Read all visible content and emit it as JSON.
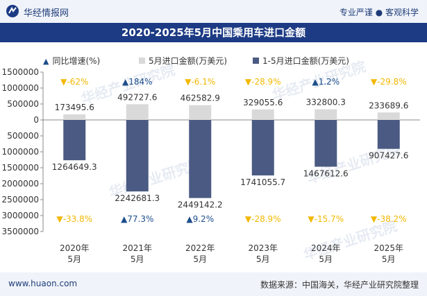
{
  "header": {
    "site_name": "华经情报网",
    "slogan_left": "专业严谨",
    "slogan_right": "客观科学"
  },
  "footer": {
    "url": "www.huaon.com",
    "source": "数据来源：中国海关，华经产业研究院整理"
  },
  "watermark": "华经产业研究院",
  "colors": {
    "bar_monthly": "#d9d9d9",
    "bar_cumulative": "#4a5a82",
    "growth_up": "#1d4e8a",
    "growth_down": "#f2b800",
    "title_bg": "#1d3b84"
  },
  "chart_data": {
    "type": "bar",
    "title": "2020-2025年5月中国乘用车进口金额",
    "categories": [
      "2020年\n5月",
      "2021年\n5月",
      "2022年\n5月",
      "2023年\n5月",
      "2024年\n5月",
      "2025年\n5月"
    ],
    "series": [
      {
        "name": "5月进口金额(万美元)",
        "values": [
          173495.6,
          492727.6,
          462582.9,
          329055.6,
          332800.3,
          233689.6
        ],
        "value_labels": [
          "173495.6",
          "492727.6",
          "462582.9",
          "329055.6",
          "332800.3",
          "233689.6"
        ],
        "growth_labels": [
          "-62%",
          "184%",
          "-6.1%",
          "-28.9%",
          "1.2%",
          "-29.8%"
        ],
        "growth_directions": [
          "down",
          "up",
          "down",
          "down",
          "up",
          "down"
        ]
      },
      {
        "name": "1-5月进口金额(万美元)",
        "values": [
          -1264649.3,
          -2242681.3,
          -2449142.2,
          -1741055.7,
          -1467612.6,
          -907427.6
        ],
        "value_labels": [
          "1264649.3",
          "2242681.3",
          "2449142.2",
          "1741055.7",
          "1467612.6",
          "907427.6"
        ],
        "growth_labels": [
          "-33.8%",
          "77.3%",
          "9.2%",
          "-28.9%",
          "-15.7%",
          "-38.2%"
        ],
        "growth_directions": [
          "down",
          "up",
          "up",
          "down",
          "down",
          "down"
        ]
      }
    ],
    "legend": {
      "growth": "同比增速(%)",
      "monthly": "5月进口金额(万美元)",
      "cumulative": "1-5月进口金额(万美元)"
    },
    "ylim": [
      -3500000,
      1500000
    ],
    "yticks": [
      1500000,
      1000000,
      500000,
      0,
      -500000,
      -1000000,
      -1500000,
      -2000000,
      -2500000,
      -3000000,
      -3500000
    ],
    "ytick_labels": [
      "1500000",
      "1000000",
      "500000",
      "0",
      "500000",
      "1000000",
      "1500000",
      "2000000",
      "2500000",
      "3000000",
      "3500000"
    ],
    "grid": false,
    "legend_position": "top"
  }
}
